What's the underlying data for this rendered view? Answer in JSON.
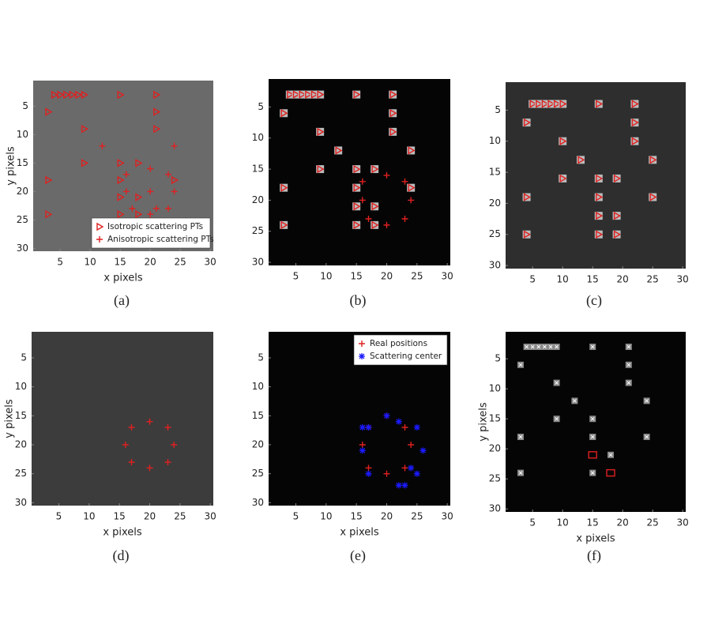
{
  "chart_data": [
    {
      "type": "scatter",
      "caption": "(a)",
      "xlabel": "x pixels",
      "ylabel": "y pixels",
      "background": "#6a6a6a",
      "xlim": [
        0.5,
        30.5
      ],
      "ylim": [
        30.5,
        0.5
      ],
      "xticks": [
        5,
        10,
        15,
        20,
        25,
        30
      ],
      "yticks": [
        5,
        10,
        15,
        20,
        25,
        30
      ],
      "legend": "lower right",
      "series": [
        {
          "name": "Isotropic scattering PTs",
          "color": "#e02020",
          "marker": "triangle",
          "x": [
            4,
            5,
            6,
            7,
            8,
            9,
            15,
            21,
            3,
            21,
            9,
            21,
            9,
            15,
            18,
            3,
            15,
            24,
            15,
            18,
            3,
            15,
            18
          ],
          "values": [
            3,
            3,
            3,
            3,
            3,
            3,
            3,
            3,
            6,
            6,
            9,
            9,
            15,
            15,
            15,
            18,
            18,
            18,
            21,
            21,
            24,
            24,
            24
          ]
        },
        {
          "name": "Anisotropic scattering PTs",
          "color": "#e02020",
          "marker": "plus",
          "x": [
            12,
            24,
            20,
            16,
            23,
            16,
            20,
            24,
            17,
            21,
            23,
            20
          ],
          "values": [
            12,
            12,
            16,
            17,
            17,
            20,
            20,
            20,
            23,
            23,
            23,
            24
          ]
        }
      ]
    },
    {
      "type": "scatter",
      "caption": "(b)",
      "background": "#050505",
      "xlim": [
        0.5,
        30.5
      ],
      "ylim": [
        30.5,
        0.5
      ],
      "xticks": [
        5,
        10,
        15,
        20,
        25,
        30
      ],
      "yticks": [
        5,
        10,
        15,
        20,
        25,
        30
      ],
      "series": [
        {
          "color": "#e02020",
          "marker": "triangle-box",
          "x": [
            4,
            5,
            6,
            7,
            8,
            9,
            15,
            21,
            3,
            21,
            9,
            21,
            12,
            24,
            9,
            15,
            18,
            3,
            15,
            24,
            15,
            18,
            3,
            15,
            18
          ],
          "values": [
            3,
            3,
            3,
            3,
            3,
            3,
            3,
            3,
            6,
            6,
            9,
            9,
            12,
            12,
            15,
            15,
            15,
            18,
            18,
            18,
            21,
            21,
            24,
            24,
            24
          ]
        },
        {
          "color": "#e02020",
          "marker": "plus",
          "x": [
            20,
            16,
            23,
            16,
            24,
            17,
            23,
            20
          ],
          "values": [
            16,
            17,
            17,
            20,
            20,
            23,
            23,
            24
          ]
        }
      ]
    },
    {
      "type": "scatter",
      "caption": "(c)",
      "background": "#2e2e2e",
      "xlim": [
        0.5,
        30.5
      ],
      "ylim": [
        30.5,
        0.5
      ],
      "xticks": [
        5,
        10,
        15,
        20,
        25,
        30
      ],
      "yticks": [
        5,
        10,
        15,
        20,
        25,
        30
      ],
      "series": [
        {
          "color": "#e02020",
          "marker": "triangle-box",
          "x": [
            5,
            6,
            7,
            8,
            9,
            10,
            16,
            22,
            4,
            22,
            10,
            22,
            13,
            25,
            10,
            16,
            19,
            4,
            16,
            25,
            16,
            19,
            4,
            16,
            19
          ],
          "values": [
            4,
            4,
            4,
            4,
            4,
            4,
            4,
            4,
            7,
            7,
            10,
            10,
            13,
            13,
            16,
            16,
            16,
            19,
            19,
            19,
            22,
            22,
            25,
            25,
            25
          ]
        }
      ]
    },
    {
      "type": "scatter",
      "caption": "(d)",
      "xlabel": "x pixels",
      "ylabel": "y pixels",
      "background": "#3c3c3c",
      "xlim": [
        0.5,
        30.5
      ],
      "ylim": [
        30.5,
        0.5
      ],
      "xticks": [
        5,
        10,
        15,
        20,
        25,
        30
      ],
      "yticks": [
        5,
        10,
        15,
        20,
        25,
        30
      ],
      "series": [
        {
          "color": "#e02020",
          "marker": "plus",
          "x": [
            20,
            17,
            23,
            16,
            24,
            17,
            23,
            20
          ],
          "values": [
            16,
            17,
            17,
            20,
            20,
            23,
            23,
            24
          ]
        }
      ]
    },
    {
      "type": "scatter",
      "caption": "(e)",
      "xlabel": "x pixels",
      "background": "#050505",
      "xlim": [
        0.5,
        30.5
      ],
      "ylim": [
        30.5,
        0.5
      ],
      "xticks": [
        5,
        10,
        15,
        20,
        25,
        30
      ],
      "yticks": [
        5,
        10,
        15,
        20,
        25,
        30
      ],
      "legend": "upper right",
      "series": [
        {
          "name": "Real positions",
          "color": "#e02020",
          "marker": "plus",
          "x": [
            20,
            17,
            23,
            16,
            24,
            17,
            23,
            20
          ],
          "values": [
            15,
            17,
            17,
            20,
            20,
            24,
            24,
            25
          ]
        },
        {
          "name": "Scattering center",
          "color": "#1a1aff",
          "marker": "star",
          "x": [
            16,
            22,
            17,
            25,
            16,
            26,
            17,
            24,
            25,
            22,
            23,
            20
          ],
          "values": [
            17,
            16,
            17,
            17,
            21,
            21,
            25,
            24,
            25,
            27,
            27,
            15
          ]
        }
      ]
    },
    {
      "type": "scatter",
      "caption": "(f)",
      "xlabel": "x pixels",
      "ylabel": "y pixels",
      "background": "#050505",
      "xlim": [
        0.5,
        30.5
      ],
      "ylim": [
        30.5,
        0.5
      ],
      "xticks": [
        5,
        10,
        15,
        20,
        25,
        30
      ],
      "yticks": [
        5,
        10,
        15,
        20,
        25,
        30
      ],
      "series": [
        {
          "color": "#8a8a8a",
          "marker": "x-box",
          "x": [
            4,
            5,
            6,
            7,
            8,
            9,
            15,
            21,
            3,
            21,
            9,
            21,
            12,
            24,
            9,
            15,
            15,
            3,
            15,
            24,
            18,
            3,
            15
          ],
          "values": [
            3,
            3,
            3,
            3,
            3,
            3,
            3,
            3,
            6,
            6,
            9,
            9,
            12,
            12,
            15,
            15,
            18,
            18,
            18,
            18,
            21,
            24,
            24
          ]
        },
        {
          "color": "#e02020",
          "marker": "square-open",
          "x": [
            15,
            18
          ],
          "values": [
            21,
            24
          ]
        }
      ]
    }
  ]
}
